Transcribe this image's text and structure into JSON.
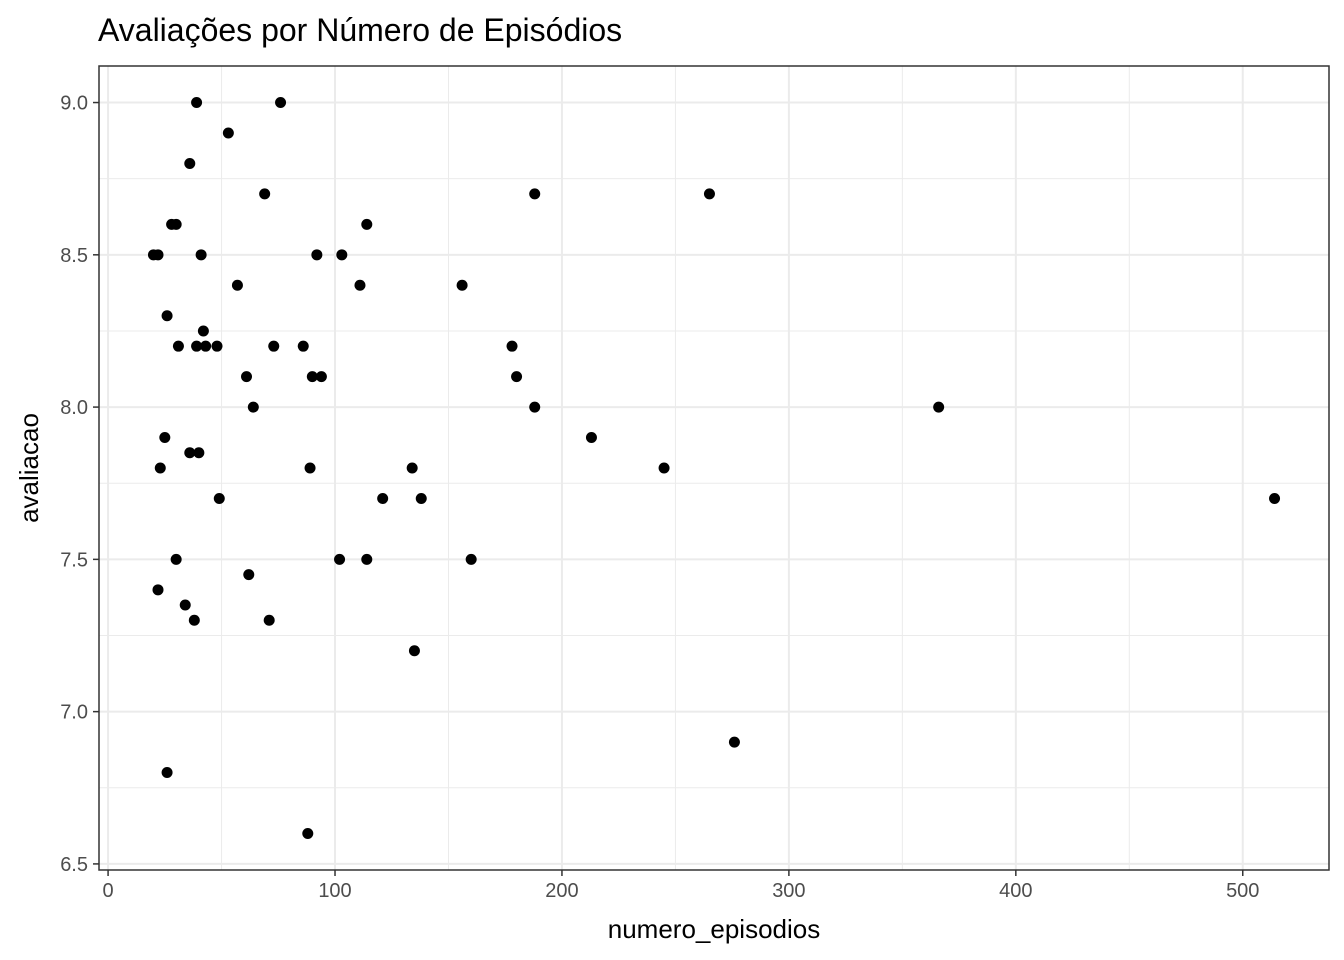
{
  "chart_data": {
    "type": "scatter",
    "title": "Avaliações por Número de Episódios",
    "xlabel": "numero_episodios",
    "ylabel": "avaliacao",
    "xlim": [
      -4,
      538
    ],
    "ylim": [
      6.48,
      9.12
    ],
    "x_ticks": [
      0,
      100,
      200,
      300,
      400,
      500
    ],
    "x_tick_labels": [
      "0",
      "100",
      "200",
      "300",
      "400",
      "500"
    ],
    "x_minor_ticks": [
      50,
      150,
      250,
      350,
      450
    ],
    "y_ticks": [
      6.5,
      7.0,
      7.5,
      8.0,
      8.5,
      9.0
    ],
    "y_tick_labels": [
      "6.5",
      "7.0",
      "7.5",
      "8.0",
      "8.5",
      "9.0"
    ],
    "y_minor_ticks": [
      6.75,
      7.25,
      7.75,
      8.25,
      8.75
    ],
    "grid": true,
    "point_color": "#000000",
    "points": [
      {
        "x": 39,
        "y": 9.0
      },
      {
        "x": 76,
        "y": 9.0
      },
      {
        "x": 53,
        "y": 8.9
      },
      {
        "x": 36,
        "y": 8.8
      },
      {
        "x": 69,
        "y": 8.7
      },
      {
        "x": 188,
        "y": 8.7
      },
      {
        "x": 265,
        "y": 8.7
      },
      {
        "x": 28,
        "y": 8.6
      },
      {
        "x": 30,
        "y": 8.6
      },
      {
        "x": 114,
        "y": 8.6
      },
      {
        "x": 20,
        "y": 8.5
      },
      {
        "x": 22,
        "y": 8.5
      },
      {
        "x": 41,
        "y": 8.5
      },
      {
        "x": 92,
        "y": 8.5
      },
      {
        "x": 103,
        "y": 8.5
      },
      {
        "x": 57,
        "y": 8.4
      },
      {
        "x": 111,
        "y": 8.4
      },
      {
        "x": 156,
        "y": 8.4
      },
      {
        "x": 26,
        "y": 8.3
      },
      {
        "x": 42,
        "y": 8.25
      },
      {
        "x": 31,
        "y": 8.2
      },
      {
        "x": 39,
        "y": 8.2
      },
      {
        "x": 43,
        "y": 8.2
      },
      {
        "x": 48,
        "y": 8.2
      },
      {
        "x": 73,
        "y": 8.2
      },
      {
        "x": 86,
        "y": 8.2
      },
      {
        "x": 178,
        "y": 8.2
      },
      {
        "x": 61,
        "y": 8.1
      },
      {
        "x": 90,
        "y": 8.1
      },
      {
        "x": 94,
        "y": 8.1
      },
      {
        "x": 180,
        "y": 8.1
      },
      {
        "x": 64,
        "y": 8.0
      },
      {
        "x": 188,
        "y": 8.0
      },
      {
        "x": 366,
        "y": 8.0
      },
      {
        "x": 25,
        "y": 7.9
      },
      {
        "x": 213,
        "y": 7.9
      },
      {
        "x": 36,
        "y": 7.85
      },
      {
        "x": 40,
        "y": 7.85
      },
      {
        "x": 23,
        "y": 7.8
      },
      {
        "x": 89,
        "y": 7.8
      },
      {
        "x": 134,
        "y": 7.8
      },
      {
        "x": 245,
        "y": 7.8
      },
      {
        "x": 49,
        "y": 7.7
      },
      {
        "x": 121,
        "y": 7.7
      },
      {
        "x": 138,
        "y": 7.7
      },
      {
        "x": 514,
        "y": 7.7
      },
      {
        "x": 30,
        "y": 7.5
      },
      {
        "x": 102,
        "y": 7.5
      },
      {
        "x": 114,
        "y": 7.5
      },
      {
        "x": 160,
        "y": 7.5
      },
      {
        "x": 62,
        "y": 7.45
      },
      {
        "x": 22,
        "y": 7.4
      },
      {
        "x": 34,
        "y": 7.35
      },
      {
        "x": 38,
        "y": 7.3
      },
      {
        "x": 71,
        "y": 7.3
      },
      {
        "x": 135,
        "y": 7.2
      },
      {
        "x": 276,
        "y": 6.9
      },
      {
        "x": 26,
        "y": 6.8
      },
      {
        "x": 88,
        "y": 6.6
      }
    ]
  }
}
